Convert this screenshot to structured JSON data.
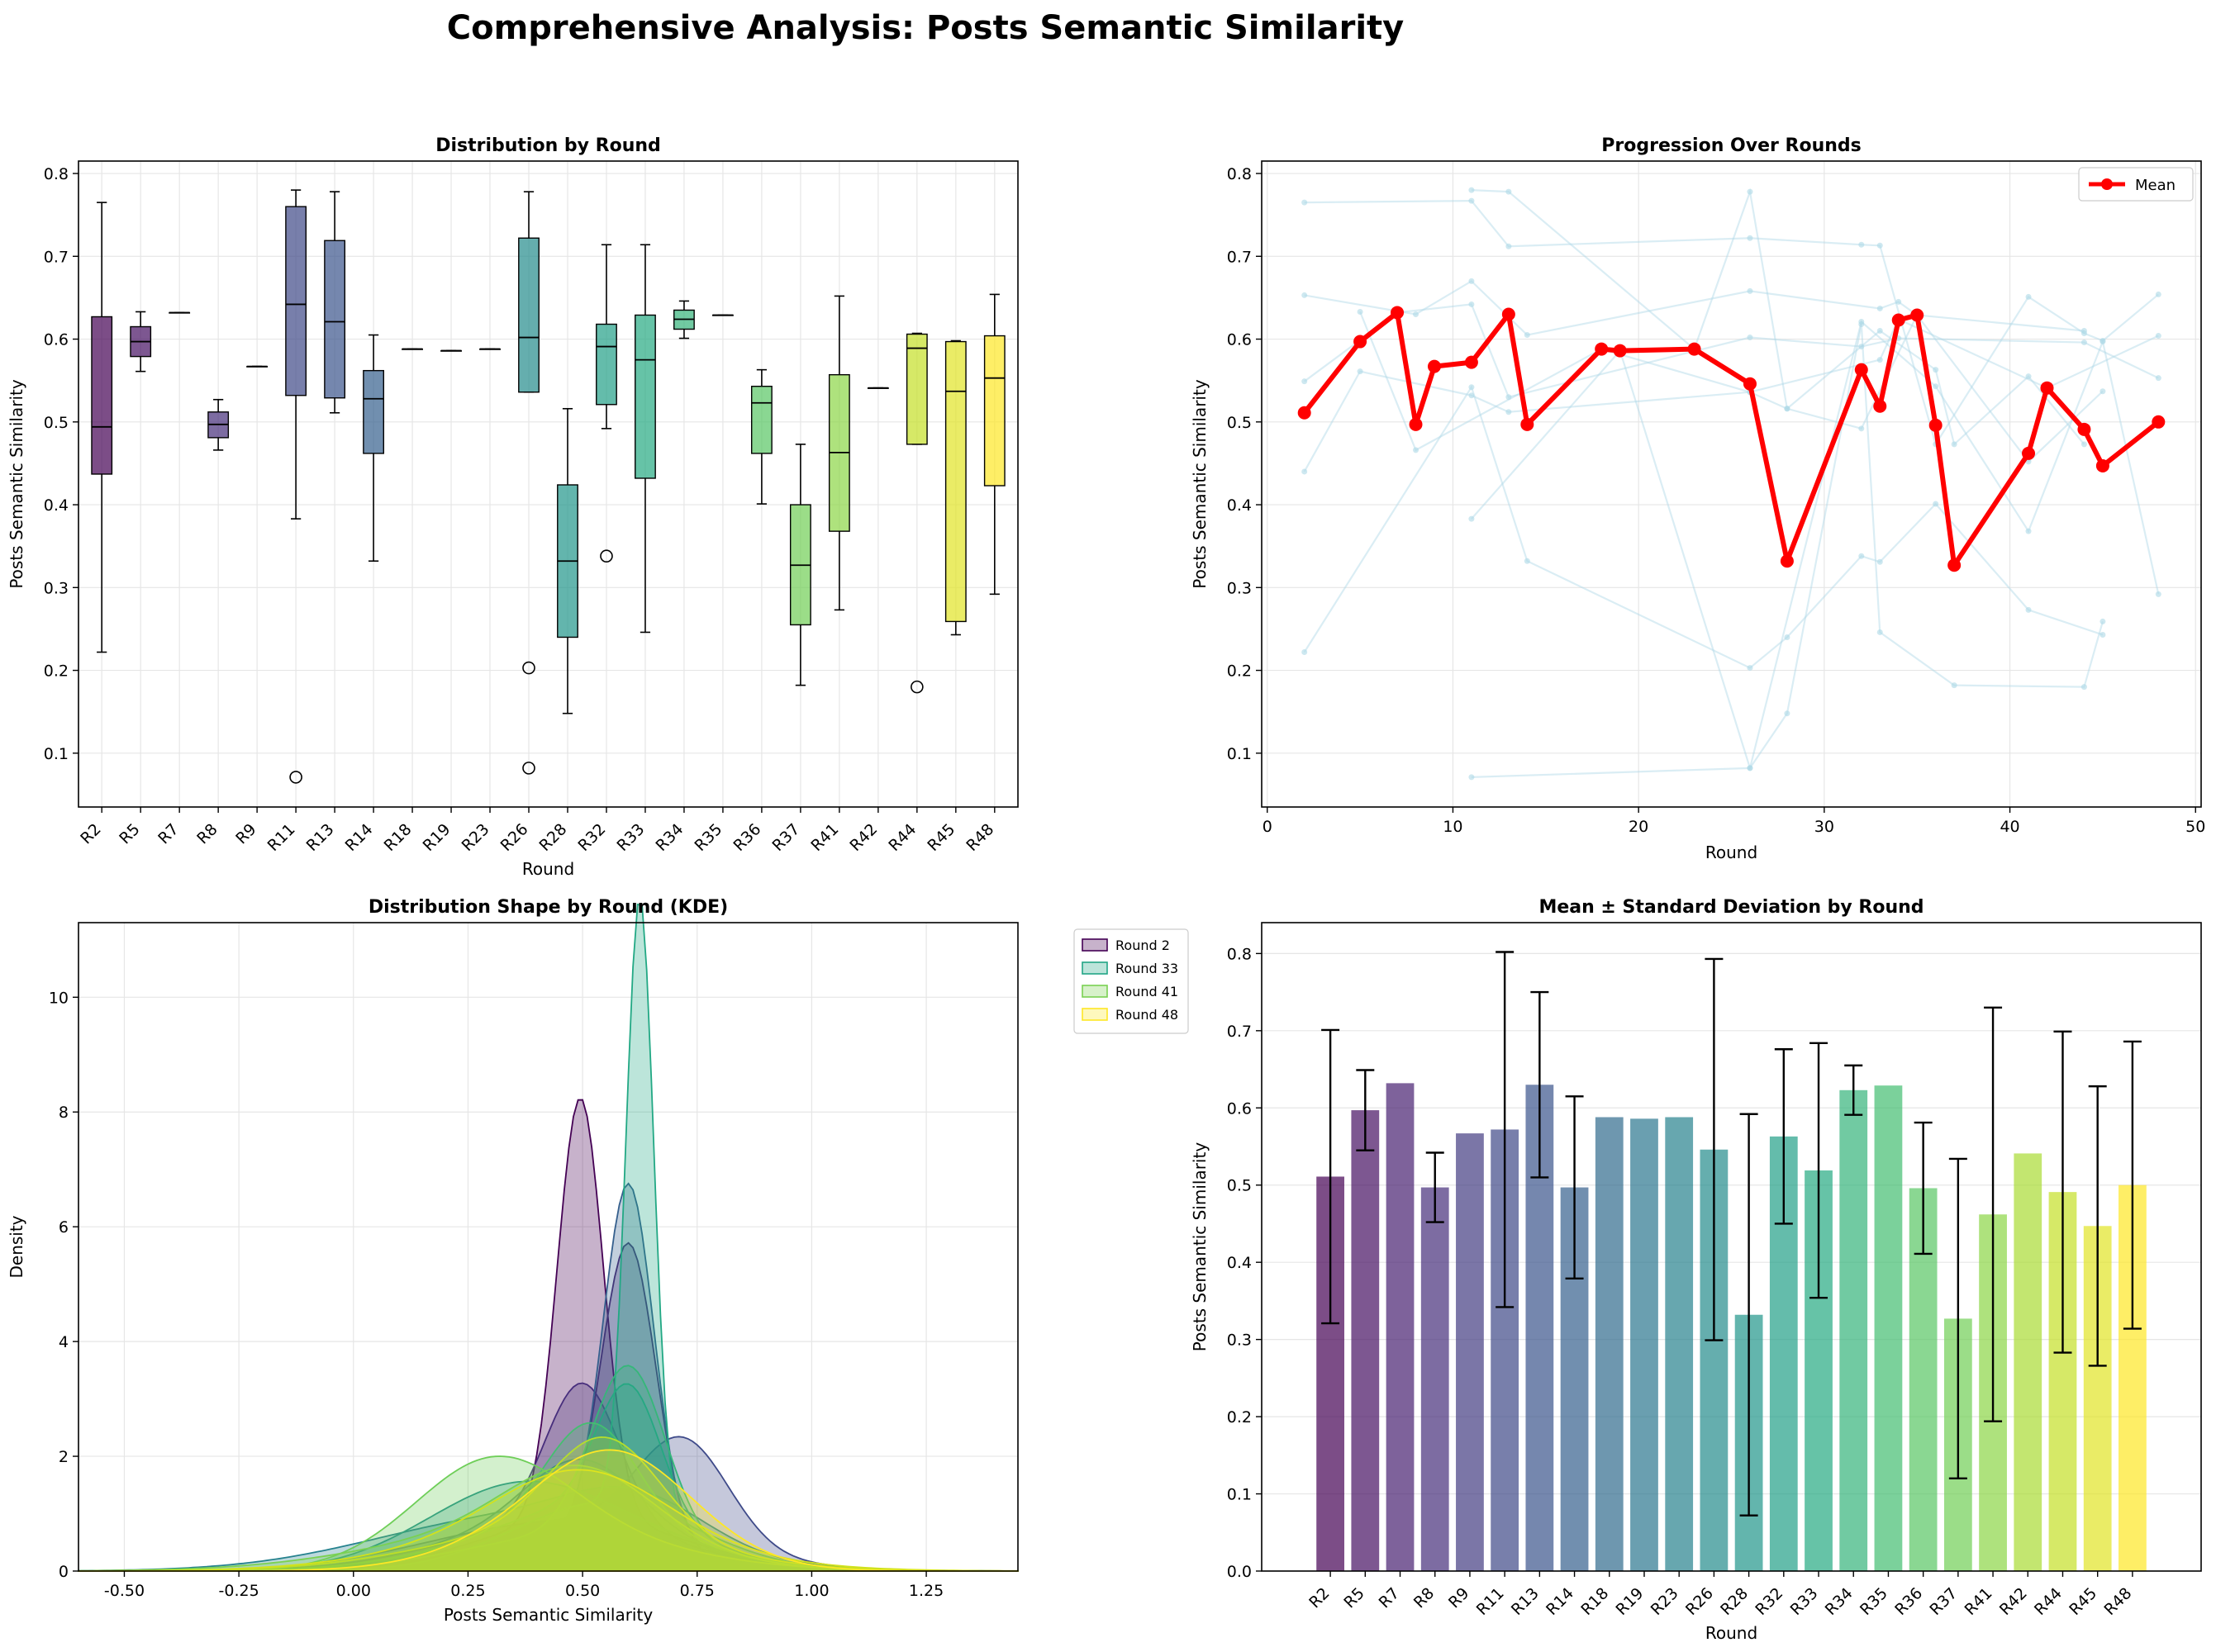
{
  "figure": {
    "title": "Comprehensive Analysis: Posts Semantic Similarity"
  },
  "colors": {
    "mean_line": "#ff0000",
    "faint_lines": "#add8e6",
    "grid": "#e6e6e6",
    "axes": "#000000",
    "viridis": [
      "#440154",
      "#482475",
      "#414487",
      "#355f8d",
      "#2a788e",
      "#21918c",
      "#22a884",
      "#44bf70",
      "#7ad151",
      "#bddf26",
      "#fde725"
    ]
  },
  "chart_data": [
    {
      "type": "box",
      "title": "Distribution by Round",
      "xlabel": "Round",
      "ylabel": "Posts Semantic Similarity",
      "ylim": [
        0.035,
        0.815
      ],
      "yticks": [
        0.1,
        0.2,
        0.3,
        0.4,
        0.5,
        0.6,
        0.7,
        0.8
      ],
      "grid": true,
      "categories": [
        "R2",
        "R5",
        "R7",
        "R8",
        "R9",
        "R11",
        "R13",
        "R14",
        "R18",
        "R19",
        "R23",
        "R26",
        "R28",
        "R32",
        "R33",
        "R34",
        "R35",
        "R36",
        "R37",
        "R41",
        "R42",
        "R44",
        "R45",
        "R48"
      ],
      "boxes": [
        {
          "q1": 0.437,
          "median": 0.494,
          "q3": 0.627,
          "low": 0.222,
          "high": 0.765,
          "outliers": []
        },
        {
          "q1": 0.579,
          "median": 0.597,
          "q3": 0.615,
          "low": 0.561,
          "high": 0.633,
          "outliers": []
        },
        {
          "q1": 0.632,
          "median": 0.632,
          "q3": 0.632,
          "low": 0.632,
          "high": 0.632,
          "outliers": []
        },
        {
          "q1": 0.481,
          "median": 0.497,
          "q3": 0.512,
          "low": 0.466,
          "high": 0.527,
          "outliers": []
        },
        {
          "q1": 0.567,
          "median": 0.567,
          "q3": 0.567,
          "low": 0.567,
          "high": 0.567,
          "outliers": []
        },
        {
          "q1": 0.532,
          "median": 0.642,
          "q3": 0.76,
          "low": 0.383,
          "high": 0.78,
          "outliers": [
            0.071
          ]
        },
        {
          "q1": 0.529,
          "median": 0.621,
          "q3": 0.719,
          "low": 0.511,
          "high": 0.778,
          "outliers": []
        },
        {
          "q1": 0.462,
          "median": 0.528,
          "q3": 0.562,
          "low": 0.332,
          "high": 0.605,
          "outliers": []
        },
        {
          "q1": 0.588,
          "median": 0.588,
          "q3": 0.588,
          "low": 0.588,
          "high": 0.588,
          "outliers": []
        },
        {
          "q1": 0.586,
          "median": 0.586,
          "q3": 0.586,
          "low": 0.586,
          "high": 0.586,
          "outliers": []
        },
        {
          "q1": 0.588,
          "median": 0.588,
          "q3": 0.588,
          "low": 0.588,
          "high": 0.588,
          "outliers": []
        },
        {
          "q1": 0.536,
          "median": 0.602,
          "q3": 0.722,
          "low": 0.536,
          "high": 0.778,
          "outliers": [
            0.203,
            0.082
          ]
        },
        {
          "q1": 0.24,
          "median": 0.332,
          "q3": 0.424,
          "low": 0.148,
          "high": 0.516,
          "outliers": []
        },
        {
          "q1": 0.521,
          "median": 0.591,
          "q3": 0.618,
          "low": 0.492,
          "high": 0.714,
          "outliers": [
            0.338
          ]
        },
        {
          "q1": 0.432,
          "median": 0.575,
          "q3": 0.629,
          "low": 0.246,
          "high": 0.714,
          "outliers": []
        },
        {
          "q1": 0.612,
          "median": 0.624,
          "q3": 0.635,
          "low": 0.601,
          "high": 0.646,
          "outliers": []
        },
        {
          "q1": 0.629,
          "median": 0.629,
          "q3": 0.629,
          "low": 0.629,
          "high": 0.629,
          "outliers": []
        },
        {
          "q1": 0.462,
          "median": 0.523,
          "q3": 0.543,
          "low": 0.401,
          "high": 0.563,
          "outliers": []
        },
        {
          "q1": 0.255,
          "median": 0.327,
          "q3": 0.4,
          "low": 0.182,
          "high": 0.473,
          "outliers": []
        },
        {
          "q1": 0.368,
          "median": 0.463,
          "q3": 0.557,
          "low": 0.273,
          "high": 0.652,
          "outliers": []
        },
        {
          "q1": 0.541,
          "median": 0.541,
          "q3": 0.541,
          "low": 0.541,
          "high": 0.541,
          "outliers": []
        },
        {
          "q1": 0.473,
          "median": 0.589,
          "q3": 0.606,
          "low": 0.473,
          "high": 0.607,
          "outliers": [
            0.18
          ]
        },
        {
          "q1": 0.259,
          "median": 0.537,
          "q3": 0.597,
          "low": 0.243,
          "high": 0.598,
          "outliers": []
        },
        {
          "q1": 0.423,
          "median": 0.553,
          "q3": 0.604,
          "low": 0.292,
          "high": 0.654,
          "outliers": []
        }
      ]
    },
    {
      "type": "line",
      "title": "Progression Over Rounds",
      "xlabel": "Round",
      "ylabel": "Posts Semantic Similarity",
      "xlim": [
        -0.3,
        50.3
      ],
      "ylim": [
        0.035,
        0.815
      ],
      "xticks": [
        0,
        10,
        20,
        30,
        40,
        50
      ],
      "yticks": [
        0.1,
        0.2,
        0.3,
        0.4,
        0.5,
        0.6,
        0.7,
        0.8
      ],
      "grid": true,
      "legend_position": "top-right",
      "series": [
        {
          "name": "Mean",
          "x": [
            2,
            5,
            7,
            8,
            9,
            11,
            13,
            14,
            18,
            19,
            23,
            26,
            28,
            32,
            33,
            34,
            35,
            36,
            37,
            41,
            42,
            44,
            45,
            48
          ],
          "y": [
            0.511,
            0.597,
            0.632,
            0.497,
            0.567,
            0.572,
            0.63,
            0.497,
            0.588,
            0.586,
            0.588,
            0.546,
            0.332,
            0.563,
            0.519,
            0.623,
            0.629,
            0.496,
            0.327,
            0.462,
            0.541,
            0.491,
            0.447,
            0.5
          ]
        }
      ],
      "individual_series": [
        {
          "x": [
            2,
            11,
            13,
            26,
            32,
            33,
            36,
            41,
            44,
            45,
            48
          ],
          "y": [
            0.765,
            0.767,
            0.712,
            0.722,
            0.714,
            0.713,
            0.473,
            0.651,
            0.607,
            0.598,
            0.654
          ]
        },
        {
          "x": [
            2,
            8,
            11,
            14,
            26,
            33,
            34,
            35,
            44
          ],
          "y": [
            0.653,
            0.63,
            0.67,
            0.605,
            0.658,
            0.637,
            0.645,
            0.629,
            0.61
          ]
        },
        {
          "x": [
            2,
            7,
            11,
            13,
            26,
            32,
            34,
            44,
            48
          ],
          "y": [
            0.549,
            0.632,
            0.642,
            0.53,
            0.602,
            0.591,
            0.601,
            0.596,
            0.553
          ]
        },
        {
          "x": [
            2,
            5,
            11,
            13,
            26,
            28,
            33,
            36,
            37,
            41,
            44
          ],
          "y": [
            0.44,
            0.561,
            0.532,
            0.512,
            0.536,
            0.516,
            0.61,
            0.563,
            0.473,
            0.555,
            0.473
          ]
        },
        {
          "x": [
            2,
            11,
            14,
            26,
            28,
            32,
            33,
            36,
            41,
            45
          ],
          "y": [
            0.222,
            0.542,
            0.332,
            0.203,
            0.24,
            0.338,
            0.331,
            0.401,
            0.273,
            0.243
          ]
        },
        {
          "x": [
            11,
            13,
            23,
            26,
            28,
            32,
            35,
            41,
            45
          ],
          "y": [
            0.78,
            0.778,
            0.588,
            0.778,
            0.516,
            0.492,
            0.629,
            0.452,
            0.537
          ]
        },
        {
          "x": [
            11,
            19,
            26,
            28,
            32,
            33,
            37,
            44,
            45
          ],
          "y": [
            0.383,
            0.586,
            0.082,
            0.148,
            0.618,
            0.246,
            0.182,
            0.18,
            0.259
          ]
        },
        {
          "x": [
            11,
            26,
            32,
            36,
            41,
            45,
            48
          ],
          "y": [
            0.071,
            0.082,
            0.621,
            0.543,
            0.368,
            0.597,
            0.292
          ]
        },
        {
          "x": [
            5,
            8,
            18,
            26,
            33,
            34,
            42,
            48
          ],
          "y": [
            0.633,
            0.466,
            0.588,
            0.536,
            0.575,
            0.624,
            0.541,
            0.604
          ]
        }
      ]
    },
    {
      "type": "area",
      "title": "Distribution Shape by Round (KDE)",
      "xlabel": "Posts Semantic Similarity",
      "ylabel": "Density",
      "xlim": [
        -0.6,
        1.45
      ],
      "ylim": [
        0,
        11.3
      ],
      "xticks": [
        -0.5,
        -0.25,
        0.0,
        0.25,
        0.5,
        0.75,
        1.0,
        1.25
      ],
      "yticks": [
        0,
        2,
        4,
        6,
        8,
        10
      ],
      "grid": true,
      "legend_position": "outside right, top",
      "legend": [
        {
          "name": "Round 2",
          "color": "#440154"
        },
        {
          "name": "Round 33",
          "color": "#21a585"
        },
        {
          "name": "Round 41",
          "color": "#7ad151"
        },
        {
          "name": "Round 48",
          "color": "#fde725"
        }
      ],
      "curves": [
        {
          "round": "R2",
          "color": "#440154",
          "components": [
            {
              "mu": 0.495,
              "sigma": 0.05,
              "w": 0.92
            },
            {
              "mu": 0.5,
              "sigma": 0.22,
              "w": 0.5
            }
          ]
        },
        {
          "round": "R5",
          "color": "#46246f",
          "components": [
            {
              "mu": 0.6,
              "sigma": 0.06,
              "w": 0.8
            },
            {
              "mu": 0.45,
              "sigma": 0.25,
              "w": 0.3
            }
          ]
        },
        {
          "round": "R8",
          "color": "#472e7c",
          "components": [
            {
              "mu": 0.5,
              "sigma": 0.08,
              "w": 0.5
            },
            {
              "mu": 0.45,
              "sigma": 0.25,
              "w": 0.5
            }
          ]
        },
        {
          "round": "R11",
          "color": "#3e4a89",
          "components": [
            {
              "mu": 0.72,
              "sigma": 0.1,
              "w": 0.45
            },
            {
              "mu": 0.45,
              "sigma": 0.28,
              "w": 0.6
            }
          ]
        },
        {
          "round": "R13",
          "color": "#355f8d",
          "components": [
            {
              "mu": 0.6,
              "sigma": 0.055,
              "w": 0.85
            },
            {
              "mu": 0.5,
              "sigma": 0.25,
              "w": 0.4
            }
          ]
        },
        {
          "round": "R14",
          "color": "#31688e",
          "components": [
            {
              "mu": 0.5,
              "sigma": 0.12,
              "w": 0.35
            },
            {
              "mu": 0.45,
              "sigma": 0.25,
              "w": 0.5
            }
          ]
        },
        {
          "round": "R26",
          "color": "#26828e",
          "components": [
            {
              "mu": 0.62,
              "sigma": 0.15,
              "w": 0.3
            },
            {
              "mu": 0.35,
              "sigma": 0.3,
              "w": 0.7
            }
          ]
        },
        {
          "round": "R28",
          "color": "#21918c",
          "components": [
            {
              "mu": 0.35,
              "sigma": 0.2,
              "w": 0.6
            },
            {
              "mu": 0.55,
              "sigma": 0.25,
              "w": 0.3
            }
          ]
        },
        {
          "round": "R32",
          "color": "#1fa187",
          "components": [
            {
              "mu": 0.6,
              "sigma": 0.07,
              "w": 0.4
            },
            {
              "mu": 0.5,
              "sigma": 0.22,
              "w": 0.6
            }
          ]
        },
        {
          "round": "R33",
          "color": "#22a884",
          "components": [
            {
              "mu": 0.625,
              "sigma": 0.03,
              "w": 0.8
            },
            {
              "mu": 0.55,
              "sigma": 0.2,
              "w": 0.6
            }
          ]
        },
        {
          "round": "R34",
          "color": "#35b779",
          "components": [
            {
              "mu": 0.6,
              "sigma": 0.08,
              "w": 0.6
            },
            {
              "mu": 0.5,
              "sigma": 0.25,
              "w": 0.4
            }
          ]
        },
        {
          "round": "R36",
          "color": "#44bf70",
          "components": [
            {
              "mu": 0.52,
              "sigma": 0.1,
              "w": 0.45
            },
            {
              "mu": 0.48,
              "sigma": 0.25,
              "w": 0.5
            }
          ]
        },
        {
          "round": "R37",
          "color": "#6ece58",
          "components": [
            {
              "mu": 0.3,
              "sigma": 0.17,
              "w": 0.7
            },
            {
              "mu": 0.5,
              "sigma": 0.25,
              "w": 0.3
            }
          ]
        },
        {
          "round": "R41",
          "color": "#7ad151",
          "components": [
            {
              "mu": 0.5,
              "sigma": 0.16,
              "w": 0.5
            },
            {
              "mu": 0.35,
              "sigma": 0.3,
              "w": 0.5
            }
          ]
        },
        {
          "round": "R44",
          "color": "#b5de2b",
          "components": [
            {
              "mu": 0.55,
              "sigma": 0.12,
              "w": 0.5
            },
            {
              "mu": 0.45,
              "sigma": 0.28,
              "w": 0.5
            }
          ]
        },
        {
          "round": "R45",
          "color": "#d2e21b",
          "components": [
            {
              "mu": 0.5,
              "sigma": 0.18,
              "w": 0.5
            },
            {
              "mu": 0.45,
              "sigma": 0.3,
              "w": 0.5
            }
          ]
        },
        {
          "round": "R48",
          "color": "#fde725",
          "components": [
            {
              "mu": 0.58,
              "sigma": 0.16,
              "w": 0.5
            },
            {
              "mu": 0.5,
              "sigma": 0.22,
              "w": 0.5
            }
          ]
        }
      ]
    },
    {
      "type": "bar",
      "title": "Mean ± Standard Deviation by Round",
      "xlabel": "Round",
      "ylabel": "Posts Semantic Similarity",
      "ylim": [
        0,
        0.84
      ],
      "yticks": [
        0.0,
        0.1,
        0.2,
        0.3,
        0.4,
        0.5,
        0.6,
        0.7,
        0.8
      ],
      "grid": true,
      "categories": [
        "R2",
        "R5",
        "R7",
        "R8",
        "R9",
        "R11",
        "R13",
        "R14",
        "R18",
        "R19",
        "R23",
        "R26",
        "R28",
        "R32",
        "R33",
        "R34",
        "R35",
        "R36",
        "R37",
        "R41",
        "R42",
        "R44",
        "R45",
        "R48"
      ],
      "values": [
        0.511,
        0.597,
        0.632,
        0.497,
        0.567,
        0.572,
        0.63,
        0.497,
        0.588,
        0.586,
        0.588,
        0.546,
        0.332,
        0.563,
        0.519,
        0.623,
        0.629,
        0.496,
        0.327,
        0.462,
        0.541,
        0.491,
        0.447,
        0.5
      ],
      "std": [
        0.19,
        0.052,
        0,
        0.045,
        0,
        0.23,
        0.12,
        0.118,
        0,
        0,
        0,
        0.247,
        0.26,
        0.113,
        0.165,
        0.032,
        0,
        0.085,
        0.207,
        0.268,
        0,
        0.208,
        0.181,
        0.186
      ]
    }
  ]
}
